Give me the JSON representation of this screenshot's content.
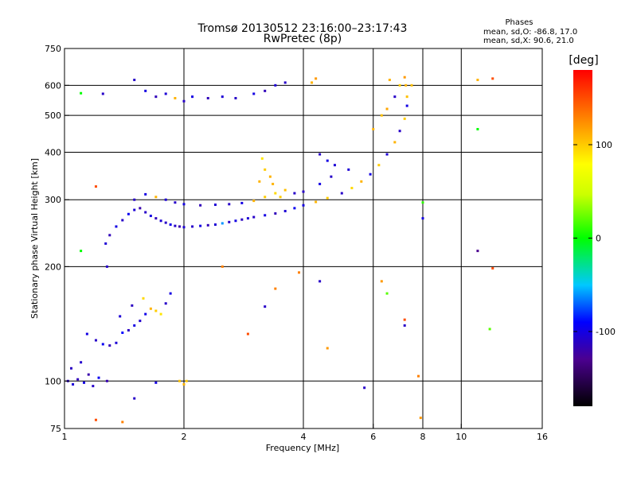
{
  "header": {
    "title_line1": "Tromsø 20130512 23:16:00–23:17:43",
    "title_line2": "RwPretec (8p)",
    "phase_title": "Phases",
    "phase_o": "mean, sd,O: -86.8, 17.0",
    "phase_x": "mean, sd,X:  90.6, 21.0"
  },
  "chart_data": {
    "type": "scatter",
    "xlabel": "Frequency [MHz]",
    "ylabel": "Stationary phase Virtual Height [km]",
    "x_scale": "log",
    "y_scale": "log",
    "xlim": [
      1,
      16
    ],
    "ylim": [
      75,
      750
    ],
    "x_ticks": [
      "1",
      "2",
      "4",
      "6",
      "8",
      "10",
      "16"
    ],
    "x_tick_values": [
      1,
      2,
      4,
      6,
      8,
      10,
      16
    ],
    "y_ticks": [
      "750",
      "600",
      "500",
      "400",
      "300",
      "200",
      "100",
      "75"
    ],
    "y_tick_values": [
      750,
      600,
      500,
      400,
      300,
      200,
      100,
      75
    ],
    "x_grid": [
      2,
      4,
      6,
      8,
      10
    ],
    "y_grid": [
      600,
      500,
      400,
      300,
      200,
      100
    ],
    "colorbar": {
      "label": "[deg]",
      "range": [
        -180,
        180
      ],
      "ticks": [
        "100",
        "0",
        "-100"
      ],
      "tick_values": [
        100,
        0,
        -100
      ]
    },
    "series": [
      {
        "points": [
          {
            "f": 1.02,
            "h": 100,
            "p": -110
          },
          {
            "f": 1.05,
            "h": 98,
            "p": -105
          },
          {
            "f": 1.08,
            "h": 101,
            "p": -115
          },
          {
            "f": 1.12,
            "h": 99,
            "p": -100
          },
          {
            "f": 1.15,
            "h": 104,
            "p": -120
          },
          {
            "f": 1.18,
            "h": 97,
            "p": -110
          },
          {
            "f": 1.22,
            "h": 102,
            "p": -95
          },
          {
            "f": 1.28,
            "h": 100,
            "p": -118
          },
          {
            "f": 1.1,
            "h": 112,
            "p": -108
          },
          {
            "f": 1.04,
            "h": 108,
            "p": -112
          },
          {
            "f": 1.14,
            "h": 133,
            "p": -100
          },
          {
            "f": 1.2,
            "h": 128,
            "p": -110
          },
          {
            "f": 1.25,
            "h": 125,
            "p": -95
          },
          {
            "f": 1.3,
            "h": 124,
            "p": -115
          },
          {
            "f": 1.35,
            "h": 126,
            "p": -105
          },
          {
            "f": 1.4,
            "h": 134,
            "p": -90
          },
          {
            "f": 1.45,
            "h": 136,
            "p": -112
          },
          {
            "f": 1.5,
            "h": 140,
            "p": -100
          },
          {
            "f": 1.55,
            "h": 144,
            "p": -108
          },
          {
            "f": 1.6,
            "h": 150,
            "p": -98
          },
          {
            "f": 1.65,
            "h": 155,
            "p": 110
          },
          {
            "f": 1.7,
            "h": 153,
            "p": 100
          },
          {
            "f": 1.75,
            "h": 150,
            "p": 90
          },
          {
            "f": 1.8,
            "h": 160,
            "p": -110
          },
          {
            "f": 1.85,
            "h": 170,
            "p": -100
          },
          {
            "f": 1.38,
            "h": 148,
            "p": -105
          },
          {
            "f": 1.48,
            "h": 158,
            "p": -112
          },
          {
            "f": 1.58,
            "h": 165,
            "p": 95
          },
          {
            "f": 1.95,
            "h": 100,
            "p": 105
          },
          {
            "f": 2.0,
            "h": 98,
            "p": 110
          },
          {
            "f": 2.03,
            "h": 100,
            "p": 102
          },
          {
            "f": 1.28,
            "h": 200,
            "p": -110
          },
          {
            "f": 1.27,
            "h": 230,
            "p": -105
          },
          {
            "f": 1.3,
            "h": 242,
            "p": -115
          },
          {
            "f": 1.35,
            "h": 255,
            "p": -100
          },
          {
            "f": 1.4,
            "h": 265,
            "p": -110
          },
          {
            "f": 1.45,
            "h": 275,
            "p": -95
          },
          {
            "f": 1.5,
            "h": 282,
            "p": -105
          },
          {
            "f": 1.55,
            "h": 285,
            "p": -120
          },
          {
            "f": 1.6,
            "h": 278,
            "p": -110
          },
          {
            "f": 1.65,
            "h": 272,
            "p": -100
          },
          {
            "f": 1.7,
            "h": 268,
            "p": -115
          },
          {
            "f": 1.75,
            "h": 264,
            "p": -105
          },
          {
            "f": 1.8,
            "h": 261,
            "p": -110
          },
          {
            "f": 1.85,
            "h": 258,
            "p": -98
          },
          {
            "f": 1.9,
            "h": 256,
            "p": -110
          },
          {
            "f": 1.95,
            "h": 255,
            "p": -120
          },
          {
            "f": 2.0,
            "h": 254,
            "p": -105
          },
          {
            "f": 2.1,
            "h": 255,
            "p": -110
          },
          {
            "f": 2.2,
            "h": 256,
            "p": -100
          },
          {
            "f": 2.3,
            "h": 257,
            "p": -115
          },
          {
            "f": 2.4,
            "h": 258,
            "p": -105
          },
          {
            "f": 2.5,
            "h": 260,
            "p": -60
          },
          {
            "f": 2.6,
            "h": 262,
            "p": -110
          },
          {
            "f": 2.7,
            "h": 264,
            "p": -100
          },
          {
            "f": 2.8,
            "h": 266,
            "p": -112
          },
          {
            "f": 2.9,
            "h": 268,
            "p": -105
          },
          {
            "f": 3.0,
            "h": 270,
            "p": -110
          },
          {
            "f": 3.2,
            "h": 273,
            "p": -100
          },
          {
            "f": 3.4,
            "h": 276,
            "p": -115
          },
          {
            "f": 3.6,
            "h": 280,
            "p": -105
          },
          {
            "f": 3.8,
            "h": 285,
            "p": -95
          },
          {
            "f": 4.0,
            "h": 290,
            "p": -100
          },
          {
            "f": 4.3,
            "h": 296,
            "p": 110
          },
          {
            "f": 4.6,
            "h": 303,
            "p": 100
          },
          {
            "f": 5.0,
            "h": 312,
            "p": -110
          },
          {
            "f": 5.3,
            "h": 322,
            "p": 95
          },
          {
            "f": 5.6,
            "h": 335,
            "p": 110
          },
          {
            "f": 5.9,
            "h": 350,
            "p": -100
          },
          {
            "f": 6.2,
            "h": 370,
            "p": 100
          },
          {
            "f": 6.5,
            "h": 395,
            "p": -105
          },
          {
            "f": 6.8,
            "h": 425,
            "p": 110
          },
          {
            "f": 7.0,
            "h": 455,
            "p": -110
          },
          {
            "f": 7.2,
            "h": 490,
            "p": 100
          },
          {
            "f": 7.3,
            "h": 530,
            "p": -100
          },
          {
            "f": 7.3,
            "h": 560,
            "p": 105
          },
          {
            "f": 7.25,
            "h": 600,
            "p": 110
          },
          {
            "f": 7.2,
            "h": 630,
            "p": 120
          },
          {
            "f": 1.5,
            "h": 300,
            "p": -110
          },
          {
            "f": 1.6,
            "h": 310,
            "p": -100
          },
          {
            "f": 1.7,
            "h": 305,
            "p": 110
          },
          {
            "f": 1.8,
            "h": 300,
            "p": -105
          },
          {
            "f": 1.9,
            "h": 295,
            "p": -110
          },
          {
            "f": 2.0,
            "h": 292,
            "p": -100
          },
          {
            "f": 2.2,
            "h": 290,
            "p": -115
          },
          {
            "f": 2.4,
            "h": 291,
            "p": -105
          },
          {
            "f": 2.6,
            "h": 292,
            "p": -110
          },
          {
            "f": 2.8,
            "h": 294,
            "p": -100
          },
          {
            "f": 3.0,
            "h": 298,
            "p": 110
          },
          {
            "f": 3.2,
            "h": 305,
            "p": 100
          },
          {
            "f": 3.4,
            "h": 312,
            "p": 95
          },
          {
            "f": 3.6,
            "h": 318,
            "p": 105
          },
          {
            "f": 3.8,
            "h": 312,
            "p": -110
          },
          {
            "f": 3.1,
            "h": 335,
            "p": 110
          },
          {
            "f": 3.2,
            "h": 360,
            "p": 100
          },
          {
            "f": 3.15,
            "h": 385,
            "p": 90
          },
          {
            "f": 3.3,
            "h": 345,
            "p": 110
          },
          {
            "f": 1.5,
            "h": 620,
            "p": -110
          },
          {
            "f": 1.6,
            "h": 580,
            "p": -100
          },
          {
            "f": 1.7,
            "h": 560,
            "p": -115
          },
          {
            "f": 1.8,
            "h": 570,
            "p": -105
          },
          {
            "f": 1.9,
            "h": 555,
            "p": 110
          },
          {
            "f": 2.0,
            "h": 545,
            "p": -110
          },
          {
            "f": 2.1,
            "h": 560,
            "p": -100
          },
          {
            "f": 2.3,
            "h": 555,
            "p": -115
          },
          {
            "f": 2.5,
            "h": 560,
            "p": -105
          },
          {
            "f": 2.7,
            "h": 555,
            "p": -110
          },
          {
            "f": 3.0,
            "h": 570,
            "p": -100
          },
          {
            "f": 3.2,
            "h": 580,
            "p": -115
          },
          {
            "f": 3.4,
            "h": 600,
            "p": -105
          },
          {
            "f": 3.6,
            "h": 610,
            "p": -110
          },
          {
            "f": 4.2,
            "h": 610,
            "p": 110
          },
          {
            "f": 4.3,
            "h": 625,
            "p": 120
          },
          {
            "f": 4.4,
            "h": 395,
            "p": -110
          },
          {
            "f": 4.6,
            "h": 380,
            "p": -100
          },
          {
            "f": 4.8,
            "h": 370,
            "p": -105
          },
          {
            "f": 6.0,
            "h": 460,
            "p": 110
          },
          {
            "f": 6.3,
            "h": 500,
            "p": 105
          },
          {
            "f": 6.5,
            "h": 520,
            "p": 115
          },
          {
            "f": 6.8,
            "h": 560,
            "p": -110
          },
          {
            "f": 7.0,
            "h": 600,
            "p": 100
          },
          {
            "f": 6.6,
            "h": 620,
            "p": 110
          },
          {
            "f": 7.5,
            "h": 600,
            "p": 105
          },
          {
            "f": 11.0,
            "h": 620,
            "p": 110
          },
          {
            "f": 12.0,
            "h": 625,
            "p": 150
          },
          {
            "f": 11.0,
            "h": 460,
            "p": 0
          },
          {
            "f": 11.0,
            "h": 220,
            "p": -130
          },
          {
            "f": 12.0,
            "h": 198,
            "p": 150
          },
          {
            "f": 11.8,
            "h": 137,
            "p": 20
          },
          {
            "f": 8.0,
            "h": 295,
            "p": 10
          },
          {
            "f": 8.0,
            "h": 268,
            "p": -100
          },
          {
            "f": 7.8,
            "h": 103,
            "p": 130
          },
          {
            "f": 7.9,
            "h": 80,
            "p": 120
          },
          {
            "f": 7.2,
            "h": 145,
            "p": 150
          },
          {
            "f": 7.2,
            "h": 140,
            "p": -110
          },
          {
            "f": 6.5,
            "h": 170,
            "p": 20
          },
          {
            "f": 6.3,
            "h": 183,
            "p": 120
          },
          {
            "f": 5.7,
            "h": 96,
            "p": -110
          },
          {
            "f": 4.6,
            "h": 122,
            "p": 120
          },
          {
            "f": 4.4,
            "h": 183,
            "p": -110
          },
          {
            "f": 3.9,
            "h": 193,
            "p": 130
          },
          {
            "f": 2.9,
            "h": 133,
            "p": 150
          },
          {
            "f": 3.2,
            "h": 157,
            "p": -110
          },
          {
            "f": 3.4,
            "h": 175,
            "p": 130
          },
          {
            "f": 1.2,
            "h": 325,
            "p": 150
          },
          {
            "f": 1.1,
            "h": 220,
            "p": 0
          },
          {
            "f": 1.2,
            "h": 79,
            "p": 150
          },
          {
            "f": 1.4,
            "h": 78,
            "p": 130
          },
          {
            "f": 1.5,
            "h": 90,
            "p": -110
          },
          {
            "f": 1.7,
            "h": 99,
            "p": -100
          },
          {
            "f": 1.25,
            "h": 570,
            "p": -110
          },
          {
            "f": 1.1,
            "h": 572,
            "p": 0
          },
          {
            "f": 2.5,
            "h": 200,
            "p": 130
          },
          {
            "f": 3.35,
            "h": 330,
            "p": 110
          },
          {
            "f": 3.5,
            "h": 305,
            "p": 100
          },
          {
            "f": 4.0,
            "h": 315,
            "p": -110
          },
          {
            "f": 4.4,
            "h": 330,
            "p": -100
          },
          {
            "f": 4.7,
            "h": 345,
            "p": -110
          },
          {
            "f": 5.2,
            "h": 360,
            "p": -105
          }
        ]
      }
    ]
  }
}
